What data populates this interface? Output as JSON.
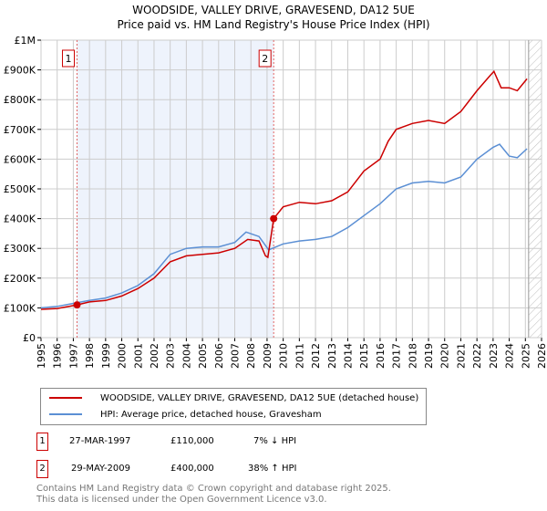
{
  "title_line1": "WOODSIDE, VALLEY DRIVE, GRAVESEND, DA12 5UE",
  "title_line2": "Price paid vs. HM Land Registry's House Price Index (HPI)",
  "chart_data": {
    "type": "line",
    "title": "WOODSIDE, VALLEY DRIVE, GRAVESEND, DA12 5UE - Price paid vs. HM Land Registry's House Price Index (HPI)",
    "xlim": [
      1995,
      2026
    ],
    "ylim": [
      0,
      1000000
    ],
    "x_ticks": [
      "1995",
      "1996",
      "1997",
      "1998",
      "1999",
      "2000",
      "2001",
      "2002",
      "2003",
      "2004",
      "2005",
      "2006",
      "2007",
      "2008",
      "2009",
      "2010",
      "2011",
      "2012",
      "2013",
      "2014",
      "2015",
      "2016",
      "2017",
      "2018",
      "2019",
      "2020",
      "2021",
      "2022",
      "2023",
      "2024",
      "2025",
      "2026"
    ],
    "y_ticks": [
      {
        "v": 0,
        "label": "£0"
      },
      {
        "v": 100000,
        "label": "£100K"
      },
      {
        "v": 200000,
        "label": "£200K"
      },
      {
        "v": 300000,
        "label": "£300K"
      },
      {
        "v": 400000,
        "label": "£400K"
      },
      {
        "v": 500000,
        "label": "£500K"
      },
      {
        "v": 600000,
        "label": "£600K"
      },
      {
        "v": 700000,
        "label": "£700K"
      },
      {
        "v": 800000,
        "label": "£800K"
      },
      {
        "v": 900000,
        "label": "£900K"
      },
      {
        "v": 1000000,
        "label": "£1M"
      }
    ],
    "grid": true,
    "series": [
      {
        "name": "WOODSIDE, VALLEY DRIVE, GRAVESEND, DA12 5UE (detached house)",
        "color": "#cc0000",
        "x": [
          1995,
          1996,
          1997.23,
          1998,
          1999,
          2000,
          2001,
          2002,
          2003,
          2004,
          2005,
          2006,
          2007,
          2007.8,
          2008.5,
          2008.9,
          2009.05,
          2009.41,
          2010,
          2011,
          2012,
          2013,
          2014,
          2015,
          2016,
          2016.5,
          2017,
          2018,
          2019,
          2020,
          2021,
          2022,
          2022.8,
          2023.05,
          2023.5,
          2024,
          2024.5,
          2025.1
        ],
        "y": [
          95000,
          98000,
          110000,
          120000,
          125000,
          140000,
          165000,
          200000,
          255000,
          275000,
          280000,
          285000,
          300000,
          330000,
          325000,
          275000,
          270000,
          400000,
          440000,
          455000,
          450000,
          460000,
          490000,
          560000,
          600000,
          660000,
          700000,
          720000,
          730000,
          720000,
          760000,
          830000,
          880000,
          895000,
          840000,
          840000,
          830000,
          870000
        ]
      },
      {
        "name": "HPI: Average price, detached house, Gravesham",
        "color": "#5b8fd4",
        "x": [
          1995,
          1996,
          1997,
          1998,
          1999,
          2000,
          2001,
          2002,
          2003,
          2004,
          2005,
          2006,
          2007,
          2007.7,
          2008.5,
          2009.1,
          2010,
          2011,
          2012,
          2013,
          2014,
          2015,
          2016,
          2017,
          2018,
          2019,
          2020,
          2021,
          2022,
          2023,
          2023.4,
          2024,
          2024.5,
          2025.1
        ],
        "y": [
          100000,
          105000,
          115000,
          125000,
          133000,
          150000,
          175000,
          215000,
          280000,
          300000,
          305000,
          305000,
          320000,
          355000,
          340000,
          295000,
          315000,
          325000,
          330000,
          340000,
          370000,
          410000,
          450000,
          500000,
          520000,
          525000,
          520000,
          540000,
          600000,
          640000,
          650000,
          610000,
          605000,
          635000
        ]
      }
    ],
    "annotations": [
      {
        "label": "1",
        "x": 1997.23,
        "y": 110000
      },
      {
        "label": "2",
        "x": 2009.41,
        "y": 400000
      }
    ],
    "shaded_range": [
      1997.23,
      2009.41
    ],
    "forecast_hatch_from": 2025.2
  },
  "legend": [
    {
      "label": "WOODSIDE, VALLEY DRIVE, GRAVESEND, DA12 5UE (detached house)",
      "color": "#cc0000"
    },
    {
      "label": "HPI: Average price, detached house, Gravesham",
      "color": "#5b8fd4"
    }
  ],
  "transactions": [
    {
      "num": "1",
      "date": "27-MAR-1997",
      "price": "£110,000",
      "hpi": "7% ↓ HPI"
    },
    {
      "num": "2",
      "date": "29-MAY-2009",
      "price": "£400,000",
      "hpi": "38% ↑ HPI"
    }
  ],
  "footer_line1": "Contains HM Land Registry data © Crown copyright and database right 2025.",
  "footer_line2": "This data is licensed under the Open Government Licence v3.0."
}
